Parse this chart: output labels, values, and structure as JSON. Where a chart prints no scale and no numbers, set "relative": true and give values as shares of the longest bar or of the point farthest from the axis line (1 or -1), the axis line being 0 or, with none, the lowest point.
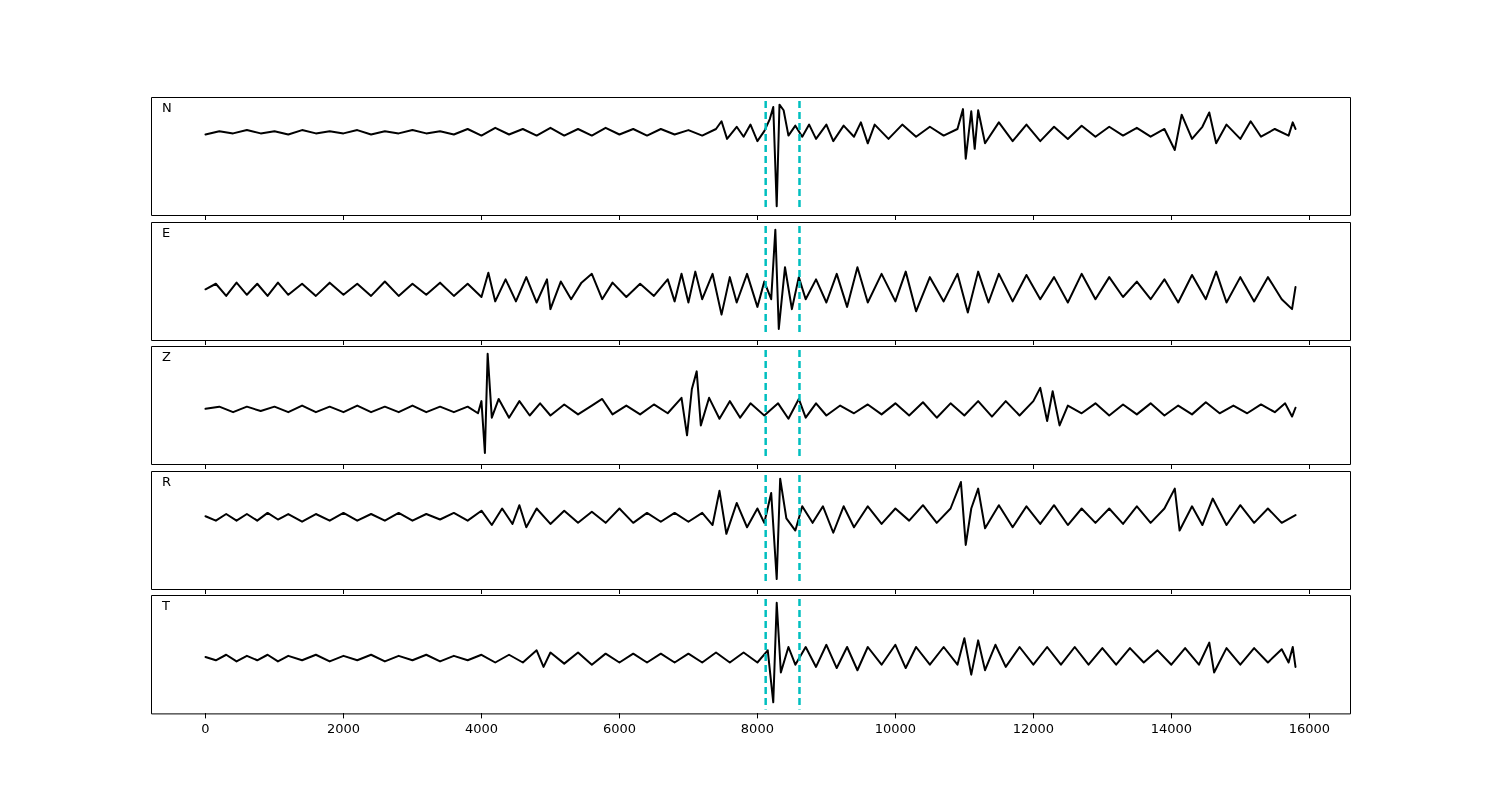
{
  "chart_data": [
    {
      "type": "line",
      "relative": true,
      "color": "#000000",
      "xlim": [
        -790,
        16590
      ],
      "xticks": [
        0,
        2000,
        4000,
        6000,
        8000,
        10000,
        12000,
        14000,
        16000
      ],
      "tick_labels": false,
      "annotations": [
        "N"
      ],
      "ref_lines": [
        {
          "axis": "x",
          "value": 8120,
          "color": "#00bfbf",
          "line_style": "dashed"
        },
        {
          "axis": "x",
          "value": 8610,
          "color": "#00bfbf",
          "line_style": "dashed"
        }
      ],
      "x": [
        0,
        200,
        400,
        600,
        800,
        1000,
        1200,
        1400,
        1600,
        1800,
        2000,
        2200,
        2400,
        2600,
        2800,
        3000,
        3200,
        3400,
        3600,
        3800,
        4000,
        4200,
        4400,
        4600,
        4800,
        5000,
        5200,
        5400,
        5600,
        5800,
        6000,
        6200,
        6400,
        6600,
        6800,
        7000,
        7200,
        7400,
        7480,
        7560,
        7700,
        7800,
        7900,
        8000,
        8100,
        8180,
        8230,
        8280,
        8320,
        8380,
        8450,
        8550,
        8650,
        8750,
        8850,
        9000,
        9100,
        9250,
        9400,
        9500,
        9600,
        9700,
        9900,
        10100,
        10300,
        10500,
        10700,
        10900,
        10980,
        11020,
        11100,
        11150,
        11200,
        11300,
        11500,
        11700,
        11900,
        12100,
        12300,
        12500,
        12700,
        12900,
        13100,
        13300,
        13500,
        13700,
        13900,
        14050,
        14150,
        14300,
        14450,
        14550,
        14650,
        14800,
        15000,
        15150,
        15300,
        15500,
        15700,
        15760,
        15800
      ],
      "values": [
        0.73,
        0.76,
        0.74,
        0.77,
        0.74,
        0.76,
        0.73,
        0.77,
        0.74,
        0.76,
        0.74,
        0.77,
        0.73,
        0.76,
        0.74,
        0.77,
        0.74,
        0.76,
        0.73,
        0.78,
        0.72,
        0.79,
        0.73,
        0.78,
        0.72,
        0.79,
        0.72,
        0.78,
        0.72,
        0.79,
        0.73,
        0.78,
        0.72,
        0.78,
        0.73,
        0.77,
        0.72,
        0.78,
        0.85,
        0.69,
        0.8,
        0.71,
        0.82,
        0.67,
        0.76,
        0.87,
        0.98,
        0.08,
        1,
        0.95,
        0.72,
        0.81,
        0.71,
        0.82,
        0.69,
        0.82,
        0.67,
        0.81,
        0.71,
        0.84,
        0.65,
        0.82,
        0.69,
        0.82,
        0.71,
        0.8,
        0.72,
        0.78,
        0.96,
        0.51,
        0.94,
        0.6,
        0.95,
        0.65,
        0.84,
        0.67,
        0.82,
        0.67,
        0.8,
        0.69,
        0.81,
        0.71,
        0.8,
        0.72,
        0.79,
        0.71,
        0.78,
        0.59,
        0.91,
        0.69,
        0.8,
        0.93,
        0.65,
        0.82,
        0.69,
        0.85,
        0.71,
        0.78,
        0.72,
        0.84,
        0.78
      ]
    },
    {
      "type": "line",
      "relative": true,
      "color": "#000000",
      "xlim": [
        -790,
        16590
      ],
      "xticks": [
        0,
        2000,
        4000,
        6000,
        8000,
        10000,
        12000,
        14000,
        16000
      ],
      "tick_labels": false,
      "annotations": [
        "E"
      ],
      "ref_lines": [
        {
          "axis": "x",
          "value": 8120,
          "color": "#00bfbf",
          "line_style": "dashed"
        },
        {
          "axis": "x",
          "value": 8610,
          "color": "#00bfbf",
          "line_style": "dashed"
        }
      ],
      "x": [
        0,
        150,
        300,
        450,
        600,
        750,
        900,
        1050,
        1200,
        1400,
        1600,
        1800,
        2000,
        2200,
        2400,
        2600,
        2800,
        3000,
        3200,
        3400,
        3600,
        3800,
        4000,
        4100,
        4200,
        4350,
        4500,
        4650,
        4800,
        4950,
        5000,
        5150,
        5300,
        5450,
        5600,
        5750,
        5900,
        6100,
        6300,
        6500,
        6700,
        6800,
        6900,
        7000,
        7100,
        7200,
        7350,
        7480,
        7600,
        7700,
        7850,
        8000,
        8100,
        8200,
        8260,
        8310,
        8400,
        8500,
        8600,
        8700,
        8850,
        9000,
        9150,
        9300,
        9450,
        9600,
        9800,
        10000,
        10150,
        10300,
        10500,
        10700,
        10900,
        11050,
        11200,
        11350,
        11500,
        11700,
        11900,
        12100,
        12300,
        12500,
        12700,
        12900,
        13100,
        13300,
        13500,
        13700,
        13900,
        14100,
        14300,
        14500,
        14650,
        14800,
        15000,
        15200,
        15400,
        15600,
        15750,
        15800
      ],
      "values": [
        0.46,
        0.51,
        0.4,
        0.52,
        0.41,
        0.51,
        0.4,
        0.52,
        0.41,
        0.51,
        0.4,
        0.52,
        0.41,
        0.51,
        0.4,
        0.53,
        0.4,
        0.51,
        0.41,
        0.52,
        0.4,
        0.51,
        0.39,
        0.61,
        0.35,
        0.55,
        0.35,
        0.57,
        0.34,
        0.55,
        0.28,
        0.53,
        0.37,
        0.52,
        0.6,
        0.37,
        0.52,
        0.39,
        0.51,
        0.4,
        0.55,
        0.35,
        0.6,
        0.34,
        0.62,
        0.37,
        0.6,
        0.23,
        0.57,
        0.34,
        0.6,
        0.3,
        0.53,
        0.37,
        1,
        0.1,
        0.66,
        0.28,
        0.57,
        0.37,
        0.55,
        0.34,
        0.6,
        0.3,
        0.66,
        0.34,
        0.6,
        0.35,
        0.62,
        0.26,
        0.57,
        0.35,
        0.6,
        0.25,
        0.62,
        0.34,
        0.6,
        0.35,
        0.59,
        0.37,
        0.57,
        0.34,
        0.6,
        0.37,
        0.57,
        0.39,
        0.53,
        0.37,
        0.55,
        0.34,
        0.59,
        0.37,
        0.62,
        0.34,
        0.57,
        0.35,
        0.57,
        0.37,
        0.28,
        0.48
      ]
    },
    {
      "type": "line",
      "relative": true,
      "color": "#000000",
      "xlim": [
        -790,
        16590
      ],
      "xticks": [
        0,
        2000,
        4000,
        6000,
        8000,
        10000,
        12000,
        14000,
        16000
      ],
      "tick_labels": false,
      "annotations": [
        "Z"
      ],
      "ref_lines": [
        {
          "axis": "x",
          "value": 8120,
          "color": "#00bfbf",
          "line_style": "dashed"
        },
        {
          "axis": "x",
          "value": 8610,
          "color": "#00bfbf",
          "line_style": "dashed"
        }
      ],
      "x": [
        0,
        200,
        400,
        600,
        800,
        1000,
        1200,
        1400,
        1600,
        1800,
        2000,
        2200,
        2400,
        2600,
        2800,
        3000,
        3200,
        3400,
        3600,
        3800,
        3950,
        4000,
        4050,
        4090,
        4150,
        4250,
        4400,
        4550,
        4700,
        4850,
        5000,
        5200,
        5400,
        5600,
        5750,
        5900,
        6100,
        6300,
        6500,
        6700,
        6900,
        6980,
        7050,
        7120,
        7180,
        7300,
        7450,
        7600,
        7750,
        7900,
        8100,
        8300,
        8450,
        8600,
        8700,
        8850,
        9000,
        9200,
        9400,
        9600,
        9800,
        10000,
        10200,
        10400,
        10600,
        10800,
        11000,
        11200,
        11400,
        11600,
        11800,
        12000,
        12100,
        12200,
        12280,
        12380,
        12500,
        12700,
        12900,
        13100,
        13300,
        13500,
        13700,
        13900,
        14100,
        14300,
        14500,
        14700,
        14900,
        15100,
        15300,
        15500,
        15650,
        15750,
        15800
      ],
      "values": [
        0.5,
        0.52,
        0.47,
        0.52,
        0.48,
        0.52,
        0.47,
        0.53,
        0.47,
        0.52,
        0.47,
        0.53,
        0.47,
        0.52,
        0.47,
        0.53,
        0.47,
        0.52,
        0.47,
        0.52,
        0.46,
        0.57,
        0.1,
        1,
        0.42,
        0.59,
        0.42,
        0.57,
        0.44,
        0.55,
        0.44,
        0.54,
        0.45,
        0.53,
        0.59,
        0.45,
        0.53,
        0.45,
        0.54,
        0.46,
        0.6,
        0.26,
        0.68,
        0.84,
        0.35,
        0.6,
        0.41,
        0.57,
        0.42,
        0.55,
        0.44,
        0.55,
        0.41,
        0.59,
        0.42,
        0.55,
        0.44,
        0.53,
        0.46,
        0.54,
        0.45,
        0.55,
        0.44,
        0.56,
        0.42,
        0.55,
        0.44,
        0.57,
        0.43,
        0.57,
        0.44,
        0.57,
        0.69,
        0.39,
        0.66,
        0.35,
        0.53,
        0.46,
        0.55,
        0.44,
        0.54,
        0.45,
        0.55,
        0.44,
        0.53,
        0.45,
        0.56,
        0.46,
        0.53,
        0.46,
        0.54,
        0.47,
        0.55,
        0.43,
        0.51
      ]
    },
    {
      "type": "line",
      "relative": true,
      "color": "#000000",
      "xlim": [
        -790,
        16590
      ],
      "xticks": [
        0,
        2000,
        4000,
        6000,
        8000,
        10000,
        12000,
        14000,
        16000
      ],
      "tick_labels": false,
      "annotations": [
        "R"
      ],
      "ref_lines": [
        {
          "axis": "x",
          "value": 8120,
          "color": "#00bfbf",
          "line_style": "dashed"
        },
        {
          "axis": "x",
          "value": 8610,
          "color": "#00bfbf",
          "line_style": "dashed"
        }
      ],
      "x": [
        0,
        150,
        300,
        450,
        600,
        750,
        900,
        1050,
        1200,
        1400,
        1600,
        1800,
        2000,
        2200,
        2400,
        2600,
        2800,
        3000,
        3200,
        3400,
        3600,
        3800,
        4000,
        4150,
        4300,
        4450,
        4550,
        4650,
        4800,
        5000,
        5200,
        5400,
        5600,
        5800,
        6000,
        6200,
        6400,
        6600,
        6800,
        7000,
        7200,
        7350,
        7450,
        7550,
        7700,
        7850,
        8000,
        8100,
        8200,
        8280,
        8330,
        8420,
        8550,
        8650,
        8800,
        8950,
        9100,
        9250,
        9400,
        9600,
        9800,
        10000,
        10200,
        10400,
        10600,
        10800,
        10950,
        11020,
        11100,
        11200,
        11300,
        11500,
        11700,
        11900,
        12100,
        12300,
        12500,
        12700,
        12900,
        13100,
        13300,
        13500,
        13700,
        13900,
        14050,
        14120,
        14300,
        14450,
        14600,
        14800,
        15000,
        15200,
        15400,
        15600,
        15800
      ],
      "values": [
        0.66,
        0.62,
        0.68,
        0.62,
        0.68,
        0.62,
        0.69,
        0.63,
        0.68,
        0.61,
        0.68,
        0.62,
        0.69,
        0.62,
        0.68,
        0.62,
        0.69,
        0.62,
        0.68,
        0.63,
        0.69,
        0.62,
        0.71,
        0.58,
        0.73,
        0.59,
        0.76,
        0.56,
        0.73,
        0.59,
        0.71,
        0.6,
        0.7,
        0.6,
        0.73,
        0.6,
        0.69,
        0.61,
        0.69,
        0.61,
        0.69,
        0.58,
        0.89,
        0.5,
        0.78,
        0.56,
        0.73,
        0.6,
        0.87,
        0.09,
        1,
        0.64,
        0.53,
        0.75,
        0.6,
        0.75,
        0.51,
        0.75,
        0.56,
        0.75,
        0.59,
        0.73,
        0.62,
        0.76,
        0.6,
        0.73,
        0.97,
        0.4,
        0.73,
        0.91,
        0.55,
        0.76,
        0.56,
        0.75,
        0.59,
        0.76,
        0.58,
        0.73,
        0.6,
        0.73,
        0.59,
        0.75,
        0.6,
        0.73,
        0.91,
        0.53,
        0.75,
        0.58,
        0.82,
        0.58,
        0.76,
        0.6,
        0.73,
        0.6,
        0.67
      ]
    },
    {
      "type": "line",
      "relative": true,
      "color": "#000000",
      "xlim": [
        -790,
        16590
      ],
      "xticks": [
        0,
        2000,
        4000,
        6000,
        8000,
        10000,
        12000,
        14000,
        16000
      ],
      "tick_labels": "x",
      "annotations": [
        "T"
      ],
      "ref_lines": [
        {
          "axis": "x",
          "value": 8120,
          "color": "#00bfbf",
          "line_style": "dashed"
        },
        {
          "axis": "x",
          "value": 8610,
          "color": "#00bfbf",
          "line_style": "dashed"
        }
      ],
      "x": [
        0,
        150,
        300,
        450,
        600,
        750,
        900,
        1050,
        1200,
        1400,
        1600,
        1800,
        2000,
        2200,
        2400,
        2600,
        2800,
        3000,
        3200,
        3400,
        3600,
        3800,
        4000,
        4200,
        4400,
        4600,
        4800,
        4900,
        5000,
        5200,
        5400,
        5600,
        5800,
        6000,
        6200,
        6400,
        6600,
        6800,
        7000,
        7200,
        7400,
        7600,
        7800,
        8000,
        8150,
        8230,
        8280,
        8340,
        8450,
        8550,
        8700,
        8850,
        9000,
        9150,
        9300,
        9450,
        9600,
        9800,
        10000,
        10150,
        10300,
        10500,
        10700,
        10900,
        11000,
        11100,
        11200,
        11300,
        11450,
        11600,
        11800,
        12000,
        12200,
        12400,
        12600,
        12800,
        13000,
        13200,
        13400,
        13600,
        13800,
        14000,
        14200,
        14400,
        14550,
        14620,
        14800,
        15000,
        15200,
        15400,
        15600,
        15700,
        15760,
        15800
      ],
      "values": [
        0.51,
        0.48,
        0.53,
        0.47,
        0.52,
        0.48,
        0.53,
        0.47,
        0.52,
        0.48,
        0.53,
        0.47,
        0.52,
        0.48,
        0.53,
        0.47,
        0.52,
        0.48,
        0.53,
        0.47,
        0.52,
        0.48,
        0.53,
        0.46,
        0.53,
        0.46,
        0.57,
        0.42,
        0.55,
        0.45,
        0.55,
        0.44,
        0.54,
        0.46,
        0.54,
        0.46,
        0.54,
        0.46,
        0.54,
        0.46,
        0.55,
        0.46,
        0.55,
        0.46,
        0.57,
        0.1,
        1,
        0.37,
        0.6,
        0.44,
        0.6,
        0.42,
        0.62,
        0.41,
        0.6,
        0.39,
        0.6,
        0.44,
        0.62,
        0.41,
        0.6,
        0.44,
        0.6,
        0.44,
        0.68,
        0.35,
        0.66,
        0.39,
        0.62,
        0.42,
        0.6,
        0.44,
        0.6,
        0.44,
        0.6,
        0.44,
        0.59,
        0.44,
        0.59,
        0.46,
        0.57,
        0.44,
        0.59,
        0.44,
        0.64,
        0.37,
        0.59,
        0.44,
        0.59,
        0.46,
        0.58,
        0.46,
        0.6,
        0.42
      ]
    }
  ]
}
